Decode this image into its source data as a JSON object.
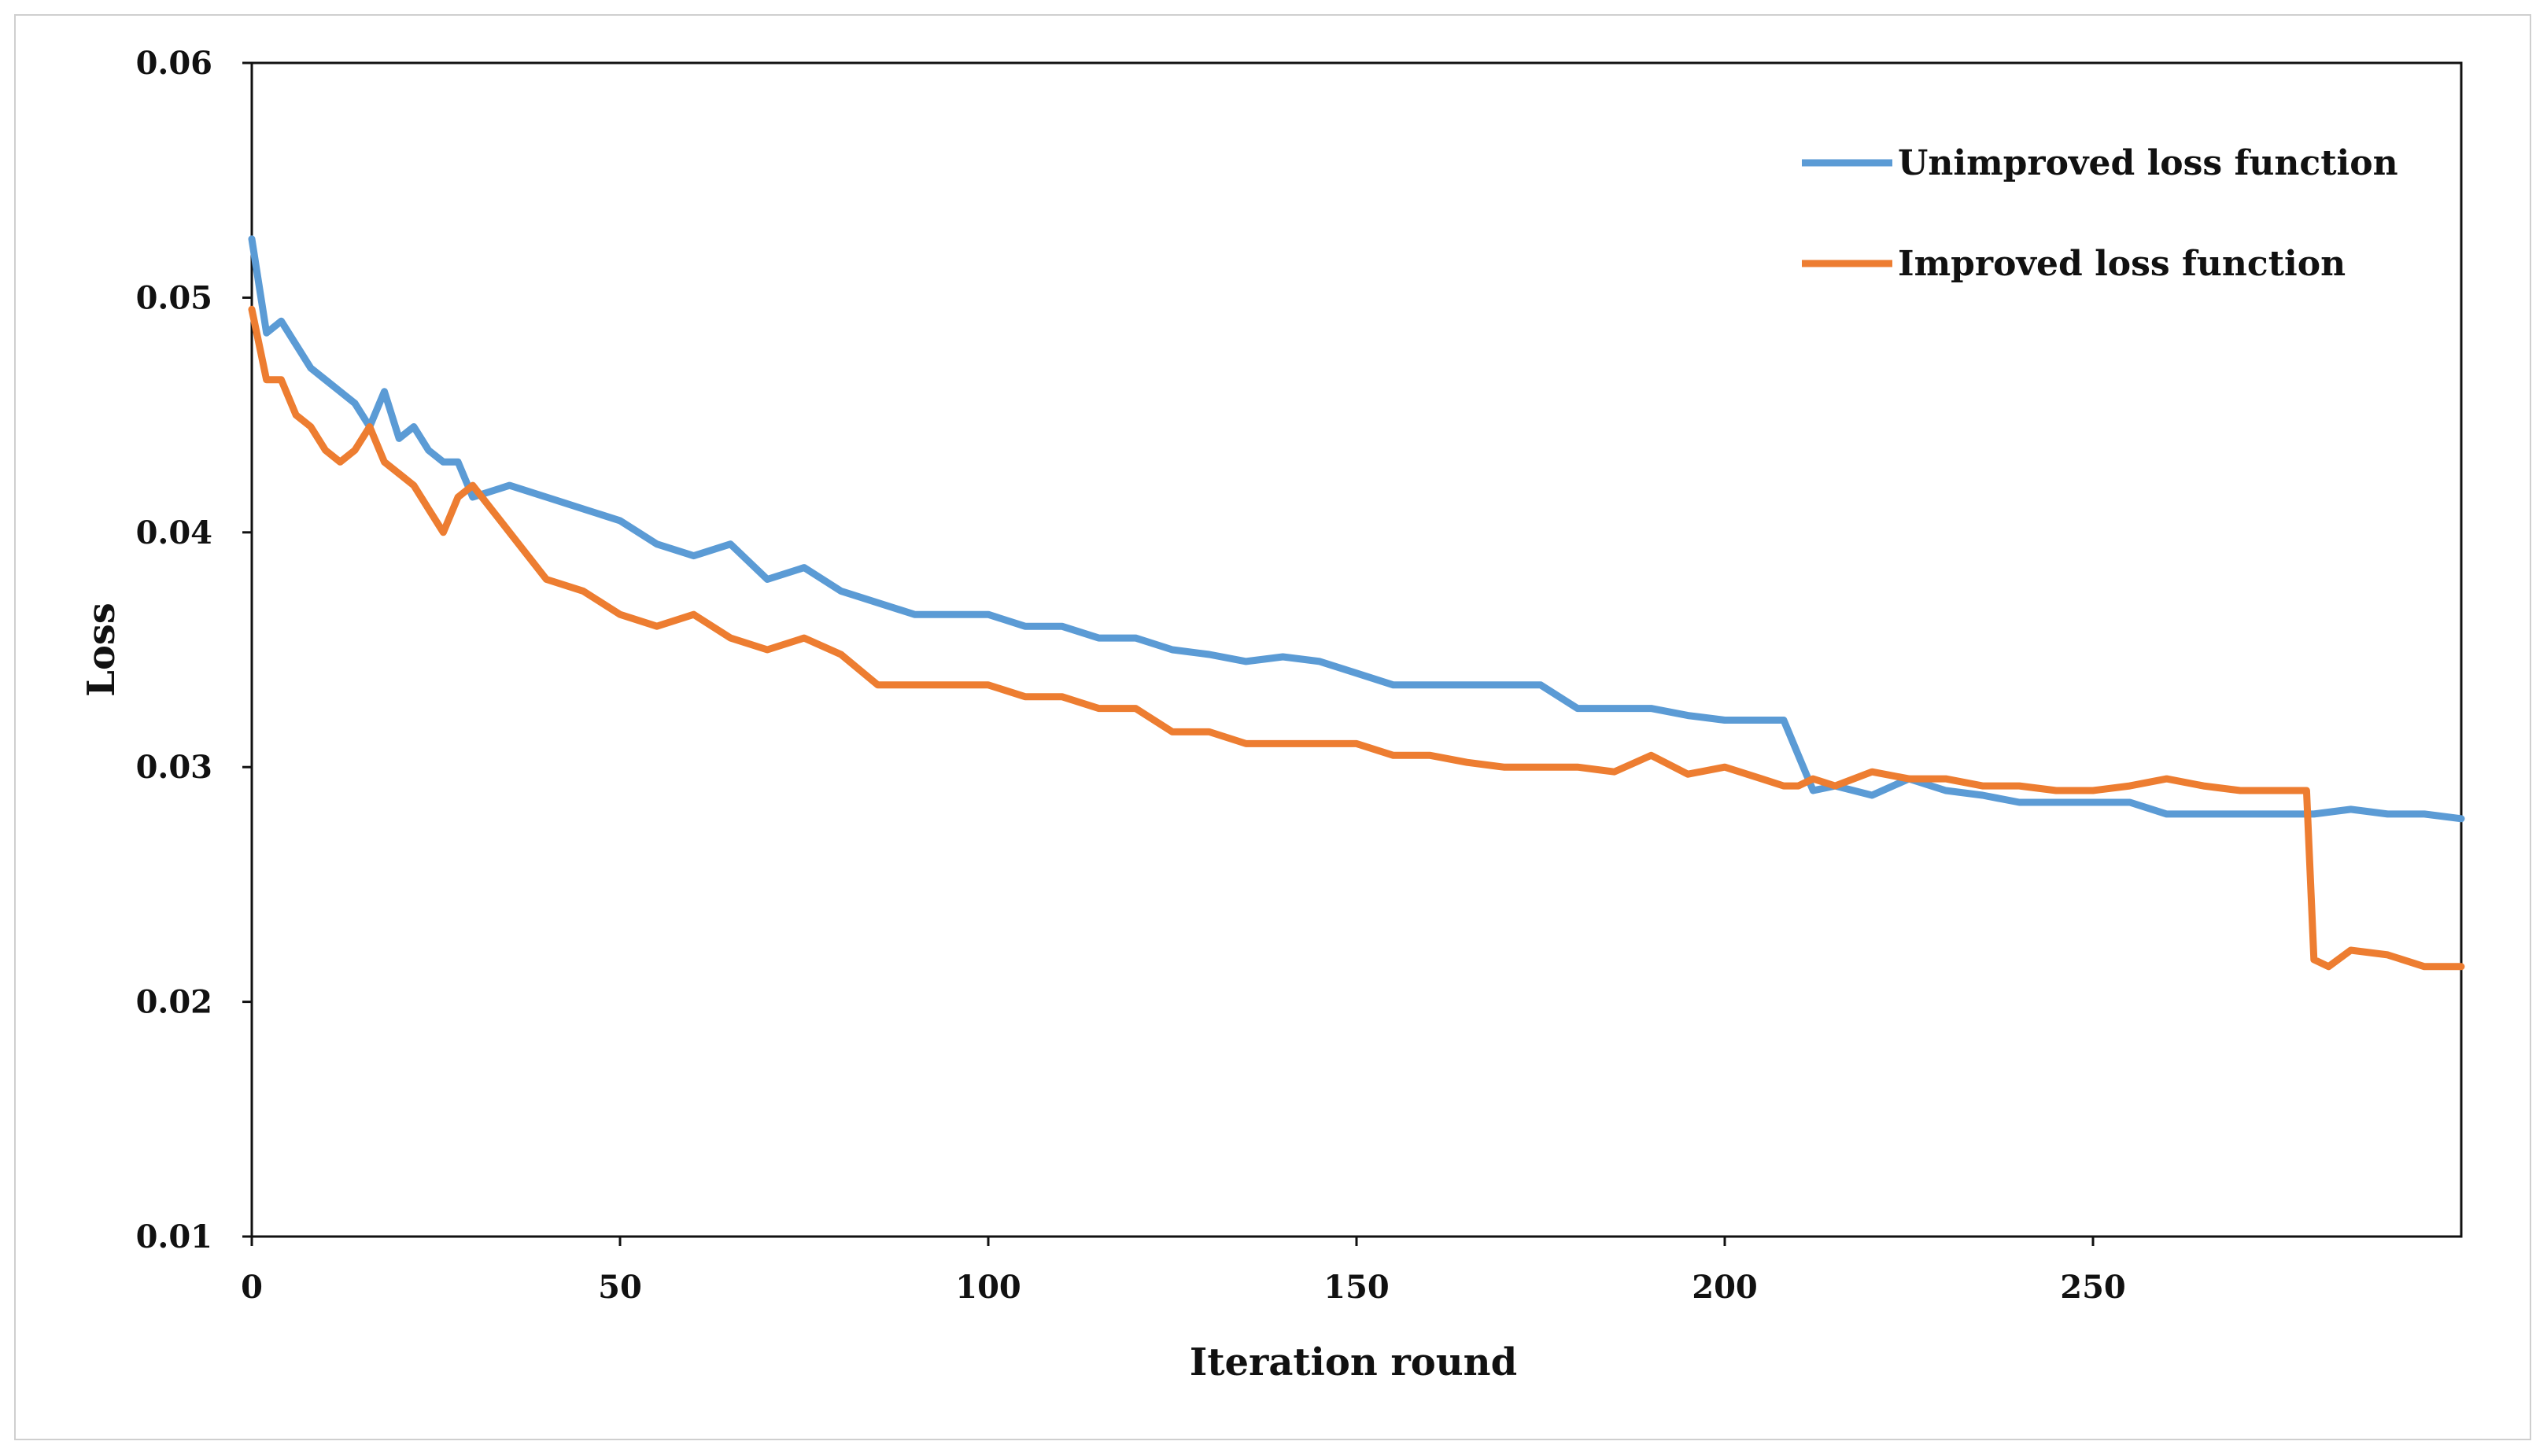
{
  "chart_data": {
    "type": "line",
    "title": "",
    "xlabel": "Iteration round",
    "ylabel": "Loss",
    "xlim": [
      0,
      300
    ],
    "ylim": [
      0.01,
      0.06
    ],
    "xticks": [
      0,
      50,
      100,
      150,
      200,
      250
    ],
    "xtick_labels": [
      "0",
      "50",
      "100",
      "150",
      "200",
      "250"
    ],
    "yticks": [
      0.01,
      0.02,
      0.03,
      0.04,
      0.05,
      0.06
    ],
    "ytick_labels": [
      "0.01",
      "0.02",
      "0.03",
      "0.04",
      "0.05",
      "0.06"
    ],
    "grid": false,
    "legend_position": "top-right",
    "series": [
      {
        "name": "Unimproved loss function",
        "color": "#5b9bd5",
        "x": [
          0,
          2,
          4,
          6,
          8,
          10,
          12,
          14,
          16,
          18,
          20,
          22,
          24,
          26,
          28,
          30,
          35,
          40,
          45,
          50,
          55,
          60,
          65,
          70,
          75,
          80,
          85,
          90,
          95,
          100,
          105,
          110,
          115,
          120,
          125,
          130,
          135,
          140,
          145,
          150,
          155,
          160,
          165,
          170,
          175,
          180,
          185,
          190,
          195,
          200,
          205,
          208,
          210,
          212,
          215,
          220,
          225,
          230,
          235,
          240,
          245,
          250,
          255,
          260,
          265,
          270,
          275,
          280,
          285,
          290,
          295,
          300
        ],
        "values": [
          0.0525,
          0.0485,
          0.049,
          0.048,
          0.047,
          0.0465,
          0.046,
          0.0455,
          0.0445,
          0.046,
          0.044,
          0.0445,
          0.0435,
          0.043,
          0.043,
          0.0415,
          0.042,
          0.0415,
          0.041,
          0.0405,
          0.0395,
          0.039,
          0.0395,
          0.038,
          0.0385,
          0.0375,
          0.037,
          0.0365,
          0.0365,
          0.0365,
          0.036,
          0.036,
          0.0355,
          0.0355,
          0.035,
          0.0348,
          0.0345,
          0.0347,
          0.0345,
          0.034,
          0.0335,
          0.0335,
          0.0335,
          0.0335,
          0.0335,
          0.0325,
          0.0325,
          0.0325,
          0.0322,
          0.032,
          0.032,
          0.032,
          0.0305,
          0.029,
          0.0292,
          0.0288,
          0.0295,
          0.029,
          0.0288,
          0.0285,
          0.0285,
          0.0285,
          0.0285,
          0.028,
          0.028,
          0.028,
          0.028,
          0.028,
          0.0282,
          0.028,
          0.028,
          0.0278
        ]
      },
      {
        "name": "Improved loss function",
        "color": "#ed7d31",
        "x": [
          0,
          2,
          4,
          6,
          8,
          10,
          12,
          14,
          16,
          18,
          20,
          22,
          24,
          26,
          28,
          30,
          35,
          40,
          45,
          50,
          55,
          60,
          65,
          70,
          75,
          80,
          85,
          90,
          95,
          100,
          105,
          110,
          115,
          120,
          125,
          130,
          135,
          140,
          145,
          150,
          155,
          160,
          165,
          170,
          175,
          180,
          185,
          190,
          195,
          200,
          205,
          208,
          210,
          212,
          215,
          220,
          225,
          230,
          235,
          240,
          245,
          250,
          255,
          260,
          265,
          270,
          275,
          279,
          280,
          282,
          285,
          290,
          295,
          300
        ],
        "values": [
          0.0495,
          0.0465,
          0.0465,
          0.045,
          0.0445,
          0.0435,
          0.043,
          0.0435,
          0.0445,
          0.043,
          0.0425,
          0.042,
          0.041,
          0.04,
          0.0415,
          0.042,
          0.04,
          0.038,
          0.0375,
          0.0365,
          0.036,
          0.0365,
          0.0355,
          0.035,
          0.0355,
          0.0348,
          0.0335,
          0.0335,
          0.0335,
          0.0335,
          0.033,
          0.033,
          0.0325,
          0.0325,
          0.0315,
          0.0315,
          0.031,
          0.031,
          0.031,
          0.031,
          0.0305,
          0.0305,
          0.0302,
          0.03,
          0.03,
          0.03,
          0.0298,
          0.0305,
          0.0297,
          0.03,
          0.0295,
          0.0292,
          0.0292,
          0.0295,
          0.0292,
          0.0298,
          0.0295,
          0.0295,
          0.0292,
          0.0292,
          0.029,
          0.029,
          0.0292,
          0.0295,
          0.0292,
          0.029,
          0.029,
          0.029,
          0.0218,
          0.0215,
          0.0222,
          0.022,
          0.0215,
          0.0215
        ]
      }
    ]
  }
}
